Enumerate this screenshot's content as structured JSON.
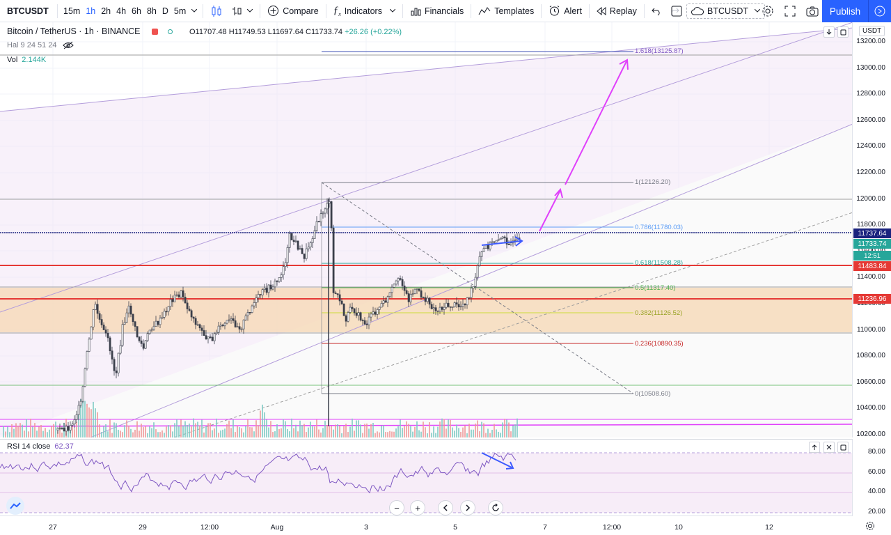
{
  "toolbar": {
    "symbol": "BTCUSDT",
    "intervals": [
      "15m",
      "1h",
      "2h",
      "4h",
      "6h",
      "8h",
      "D",
      "5m"
    ],
    "active_interval": "1h",
    "compare_label": "Compare",
    "indicators_label": "Indicators",
    "financials_label": "Financials",
    "templates_label": "Templates",
    "alert_label": "Alert",
    "replay_label": "Replay",
    "right_symbol": "BTCUSDT",
    "publish_label": "Publish"
  },
  "legend": {
    "title": "Bitcoin / TetherUS · 1h · BINANCE",
    "open": "O11707.48",
    "high": "H11749.53",
    "low": "L11697.64",
    "close": "C11733.74",
    "change": "+26.26 (+0.22%)",
    "hal_label": "Hal 9 24 51 24",
    "vol_label": "Vol",
    "vol_value": "2.144K"
  },
  "price_axis": {
    "currency": "USDT",
    "ticks": [
      "13200.00",
      "13000.00",
      "12800.00",
      "12600.00",
      "12400.00",
      "12200.00",
      "12000.00",
      "11800.00",
      "11600.00",
      "11400.00",
      "11200.00",
      "11000.00",
      "10800.00",
      "10600.00",
      "10400.00",
      "10200.00"
    ],
    "tag_blue": "11737.64",
    "tag_green": "11733.74",
    "tag_time": "12:51",
    "tag_red1": "11483.84",
    "tag_red2": "11236.96"
  },
  "fib_labels": {
    "f1618": "1.618(13125.87)",
    "f1": "1(12126.20)",
    "f786": "0.786(11780.03)",
    "f618": "0.618(11508.28)",
    "f5": "0.5(11317.40)",
    "f382": "0.382(11126.52)",
    "f236": "0.236(10890.35)",
    "f0": "0(10508.60)"
  },
  "rsi": {
    "label": "RSI 14 close",
    "value": "62.37",
    "ticks": [
      "80.00",
      "60.00",
      "40.00",
      "20.00"
    ]
  },
  "time_axis": {
    "ticks": [
      "27",
      "29",
      "12:00",
      "Aug",
      "3",
      "5",
      "7",
      "12:00",
      "10",
      "12"
    ]
  },
  "colors": {
    "accent": "#2962ff",
    "up": "#26a69a",
    "down": "#ef5350",
    "rsi": "#7e57c2",
    "magenta": "#e040fb",
    "red_line": "#e53935",
    "blue_line": "#1a237e"
  }
}
